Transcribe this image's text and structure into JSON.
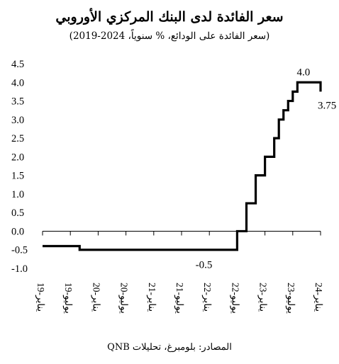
{
  "chart_data": {
    "type": "line",
    "step": true,
    "title": "سعر الفائدة لدى البنك المركزي الأوروبي",
    "subtitle": "(سعر الفائدة على الودائع، % سنوياً، 2024-2019)",
    "source": "المصادر: بلومبرغ، تحليلات QNB",
    "ylim": [
      -1.0,
      4.5
    ],
    "ytick_step": 0.5,
    "ytick_labels": [
      "-1.0",
      "-0.5",
      "0.0",
      "0.5",
      "1.0",
      "1.5",
      "2.0",
      "2.5",
      "3.0",
      "3.5",
      "4.0",
      "4.5"
    ],
    "xlim": [
      "2019-01",
      "2024-01"
    ],
    "xticks": [
      "2019-01",
      "2019-07",
      "2020-01",
      "2020-07",
      "2021-01",
      "2021-07",
      "2022-01",
      "2022-07",
      "2023-01",
      "2023-07",
      "2024-01"
    ],
    "xtick_labels": [
      "يناير-19",
      "يوليو-19",
      "يناير-20",
      "يوليو-20",
      "يناير-21",
      "يوليو-21",
      "يناير-22",
      "يوليو-22",
      "يناير-23",
      "يوليو-23",
      "يناير-24"
    ],
    "series": [
      {
        "color": "#000000",
        "x": [
          "2019-01",
          "2019-09",
          "2022-07",
          "2022-08",
          "2022-09",
          "2022-10",
          "2022-11",
          "2022-12",
          "2023-01",
          "2023-02",
          "2023-03",
          "2023-04",
          "2023-05",
          "2023-06",
          "2023-07",
          "2023-08",
          "2023-09",
          "2023-10",
          "2023-11",
          "2023-12",
          "2024-01"
        ],
        "values": [
          -0.4,
          -0.5,
          0.0,
          0.0,
          0.75,
          0.75,
          1.5,
          1.5,
          2.0,
          2.0,
          2.5,
          3.0,
          3.25,
          3.5,
          3.75,
          4.0,
          4.0,
          4.0,
          4.0,
          4.0,
          3.75
        ]
      }
    ],
    "annotations": [
      {
        "text": "-0.5",
        "x": "2021-10",
        "y": -0.5
      },
      {
        "text": "4.0",
        "x": "2023-09",
        "y": 4.0
      },
      {
        "text": "3.75",
        "x": "2024-01",
        "y": 3.75
      }
    ],
    "grid": false,
    "legend": "none"
  }
}
